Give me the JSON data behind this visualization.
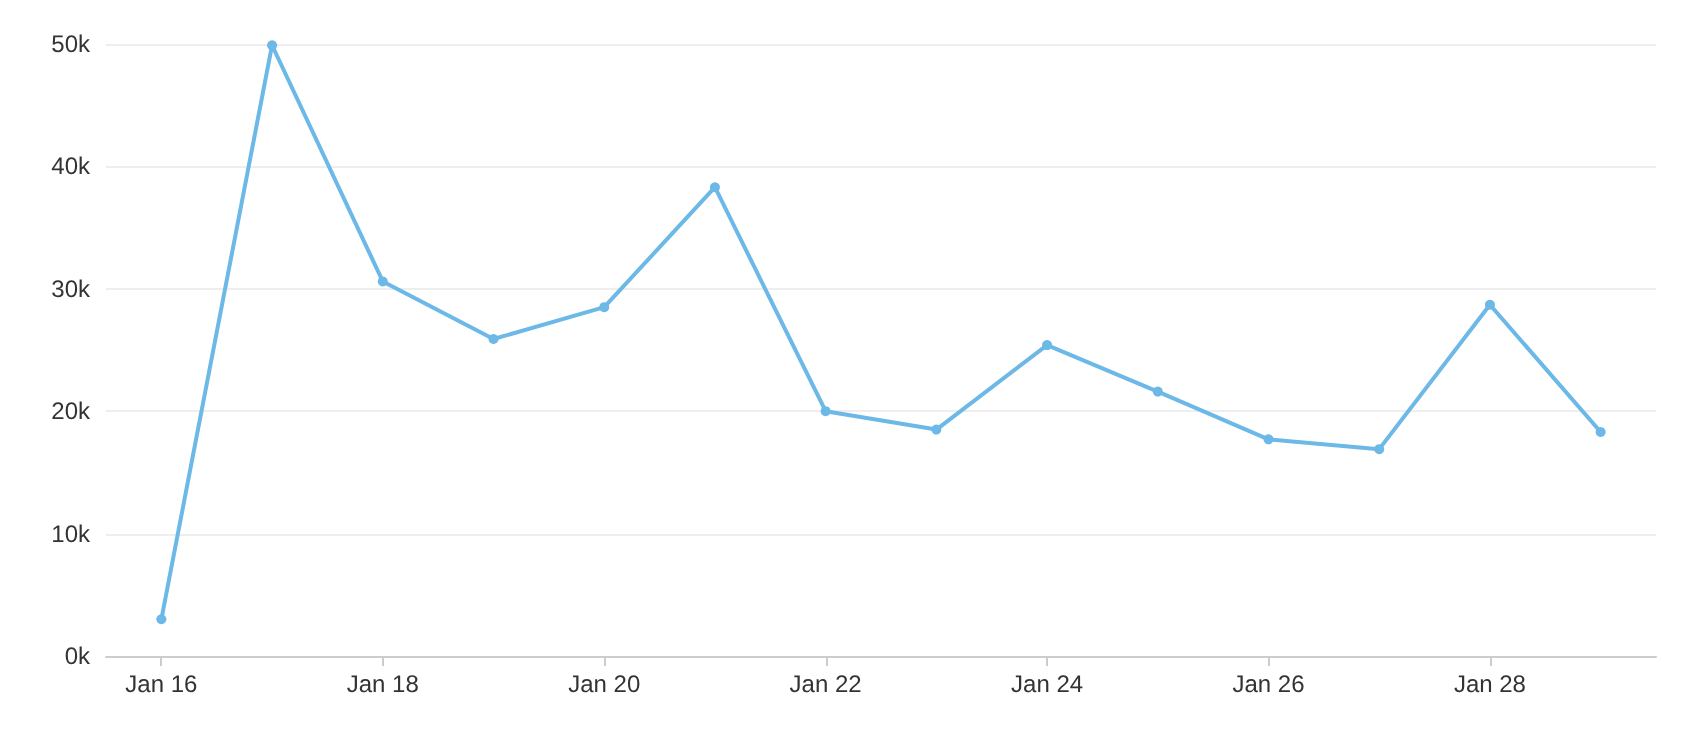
{
  "chart_data": {
    "type": "line",
    "categories": [
      "Jan 16",
      null,
      "Jan 18",
      null,
      "Jan 20",
      null,
      "Jan 22",
      null,
      "Jan 24",
      null,
      "Jan 26",
      null,
      "Jan 28",
      null
    ],
    "series": [
      {
        "color": "#6cb8e6",
        "values": [
          3000,
          49900,
          30600,
          25900,
          28500,
          38300,
          20000,
          18500,
          25400,
          21600,
          17700,
          16900,
          28700,
          18300
        ]
      }
    ],
    "ylim": [
      0,
      50000
    ],
    "yticks": [
      {
        "value": 0,
        "label": "0k"
      },
      {
        "value": 10000,
        "label": "10k"
      },
      {
        "value": 20000,
        "label": "20k"
      },
      {
        "value": 30000,
        "label": "30k"
      },
      {
        "value": 40000,
        "label": "40k"
      },
      {
        "value": 50000,
        "label": "50k"
      }
    ],
    "grid": "y",
    "marker": "circle",
    "line_style": "solid"
  }
}
